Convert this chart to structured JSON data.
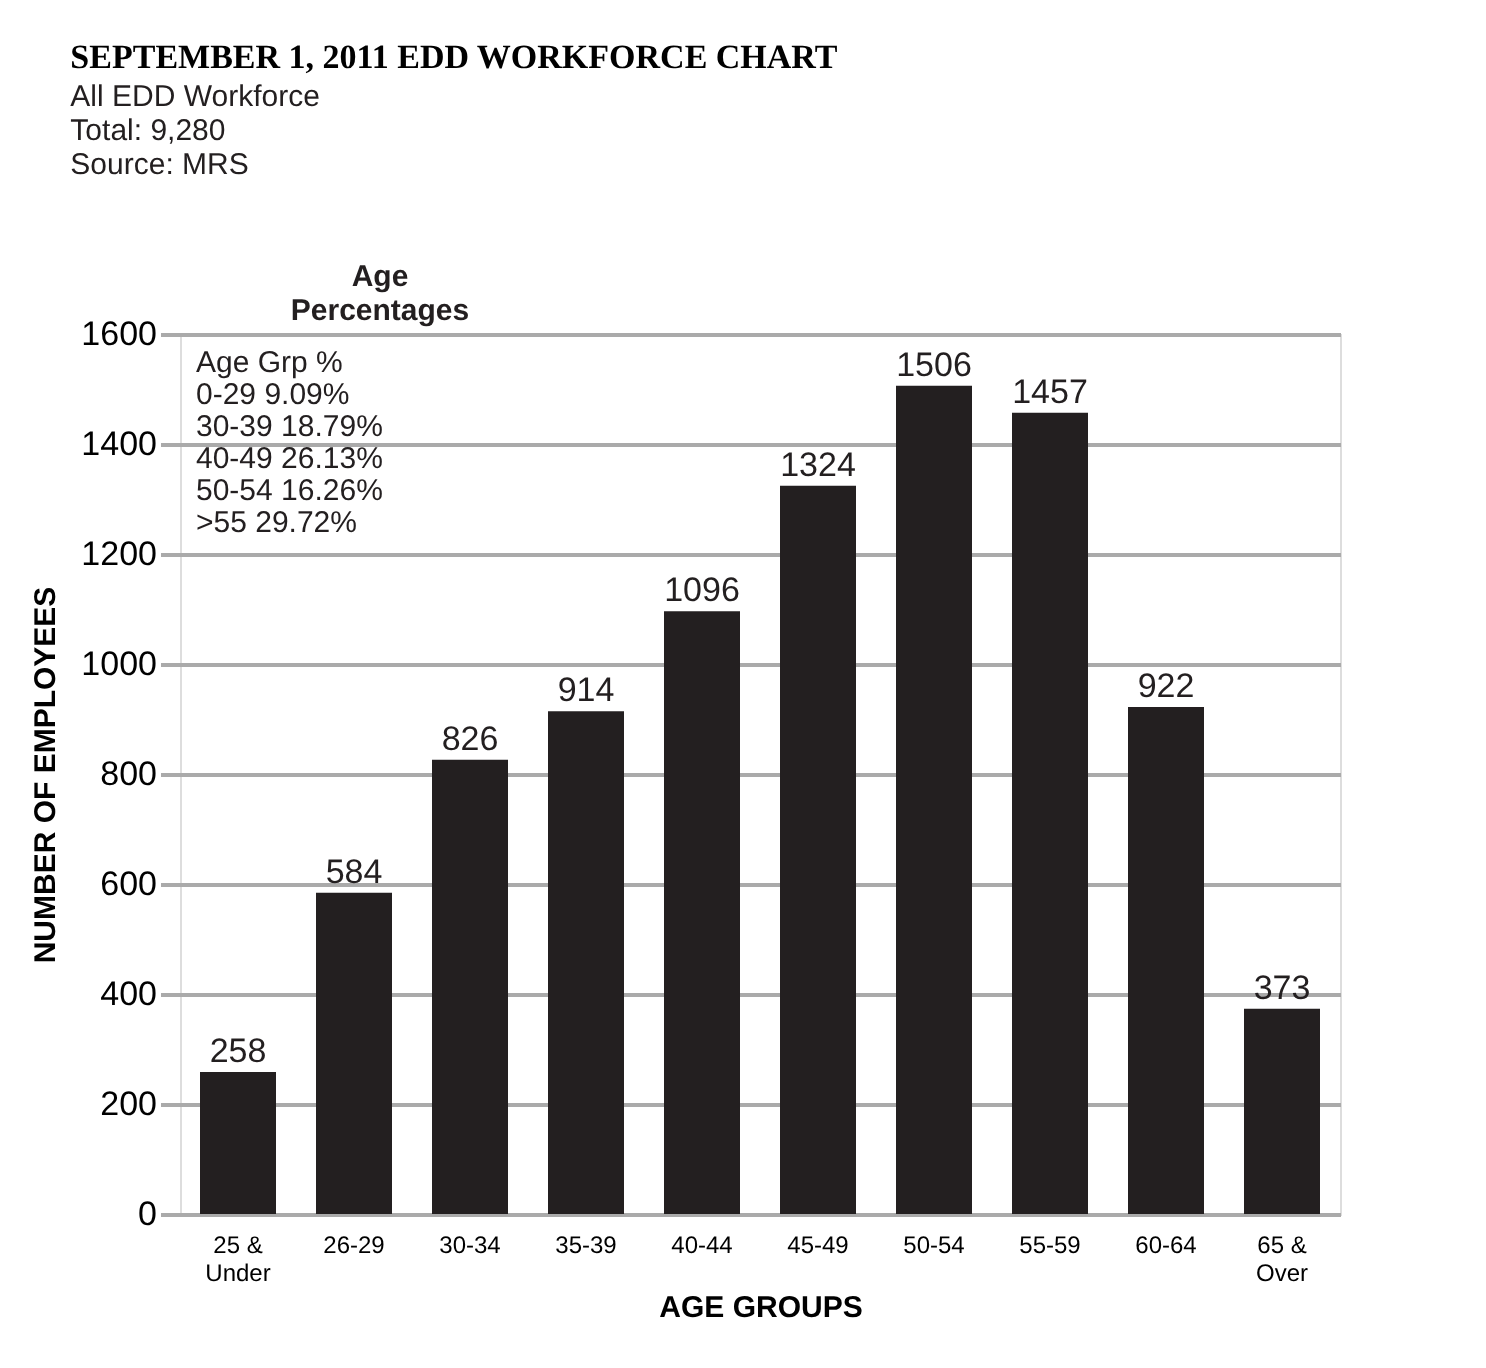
{
  "chart_data": {
    "type": "bar",
    "title": "SEPTEMBER 1, 2011 EDD WORKFORCE CHART",
    "subtitle": [
      "All EDD Workforce",
      "Total: 9,280",
      "Source: MRS"
    ],
    "xlabel": "AGE GROUPS",
    "ylabel": "NUMBER OF EMPLOYEES",
    "categories": [
      "25 & Under",
      "26-29",
      "30-34",
      "35-39",
      "40-44",
      "45-49",
      "50-54",
      "55-59",
      "60-64",
      "65 & Over"
    ],
    "values": [
      258,
      584,
      826,
      914,
      1096,
      1324,
      1506,
      1457,
      922,
      373
    ],
    "color": "#231f20",
    "ylim": [
      0,
      1600
    ],
    "yticks": [
      0,
      200,
      400,
      600,
      800,
      1000,
      1200,
      1400,
      1600
    ],
    "grid": "y",
    "data_labels": true,
    "annotations": [
      "Age Percentages",
      "Age Grp %",
      "0-29 9.09%",
      "30-39 18.79%",
      "40-49 26.13%",
      "50-54 16.26%",
      ">55 29.72%"
    ]
  }
}
